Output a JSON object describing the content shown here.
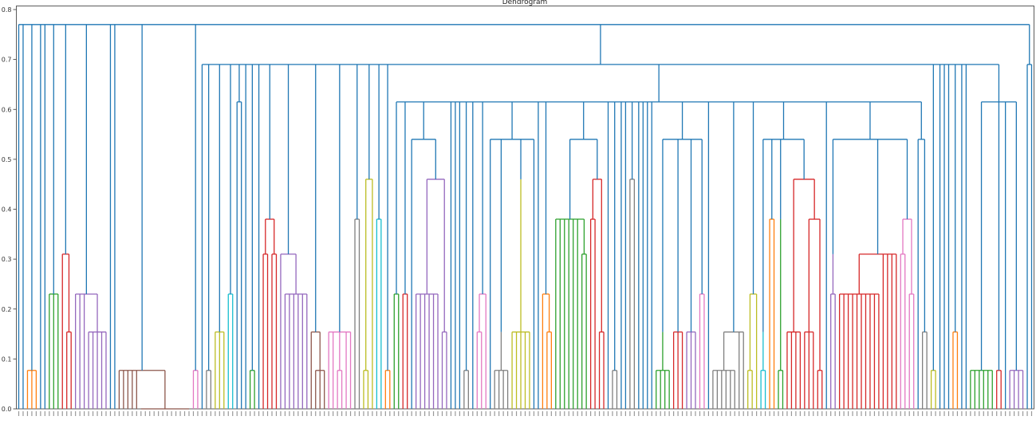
{
  "chart_data": {
    "type": "dendrogram",
    "title": "Dendrogram",
    "ylim": [
      0,
      0.8
    ],
    "yticks": [
      "0.0",
      "0.1",
      "0.2",
      "0.3",
      "0.4",
      "0.5",
      "0.6",
      "0.7",
      "0.8"
    ],
    "grid": false,
    "palette": {
      "blue": "#1f77b4",
      "orange": "#ff7f0e",
      "green": "#2ca02c",
      "red": "#d62728",
      "purple": "#9467bd",
      "brown": "#8c564b",
      "pink": "#e377c2",
      "gray": "#7f7f7f",
      "olive": "#bcbd22",
      "cyan": "#17becf"
    },
    "tree_format": "[height, color, children...]; integer child = number of leaves",
    "tree": [
      0.77,
      "blue",
      1,
      1,
      [
        0.077,
        "orange",
        3
      ],
      1,
      1,
      [
        0.23,
        "green",
        3
      ],
      [
        0.31,
        "red",
        1,
        [
          0.154,
          "red",
          2
        ]
      ],
      [
        0.23,
        "purple",
        3,
        [
          0.154,
          "purple",
          5
        ]
      ],
      1,
      1,
      [
        0.077,
        "brown",
        5,
        [
          0,
          "brown",
          12
        ]
      ],
      [
        0.077,
        "pink",
        2
      ],
      [
        0.69,
        "blue",
        1,
        [
          0.077,
          "gray",
          2
        ],
        [
          0.154,
          "olive",
          3
        ],
        [
          0.23,
          "cyan",
          2
        ],
        [
          0.615,
          "blue",
          2
        ],
        1,
        [
          0.077,
          "green",
          2
        ],
        1,
        [
          0.38,
          "red",
          [
            0.31,
            "red",
            2
          ],
          [
            0.31,
            "red",
            2
          ]
        ],
        [
          0.31,
          "purple",
          1,
          [
            0.23,
            "purple",
            6
          ]
        ],
        [
          0.154,
          "brown",
          1,
          [
            0.077,
            "brown",
            3
          ]
        ],
        [
          0.154,
          "pink",
          2,
          [
            0.077,
            "pink",
            2
          ],
          2
        ],
        [
          0.38,
          "gray",
          2
        ],
        [
          0.46,
          "olive",
          [
            0.077,
            "olive",
            2
          ],
          1
        ],
        [
          0.38,
          "cyan",
          2
        ],
        [
          0.077,
          "orange",
          2
        ],
        [
          0.615,
          "blue",
          [
            0.23,
            "green",
            2
          ],
          [
            0.23,
            "red",
            2
          ],
          [
            0.54,
            "blue",
            1,
            [
              0.46,
              "purple",
              [
                0.23,
                "purple",
                6
              ],
              [
                0.154,
                "purple",
                2
              ]
            ]
          ],
          1,
          1,
          1,
          [
            0.077,
            "gray",
            2
          ],
          1,
          [
            0.23,
            "pink",
            [
              0.154,
              "pink",
              2
            ],
            1
          ],
          [
            0.54,
            "blue",
            1,
            [
              0.154,
              "gray",
              [
                0.077,
                "gray",
                4
              ]
            ],
            [
              0.46,
              "olive",
              [
                0.154,
                "olive",
                5
              ]
            ],
            1
          ],
          1,
          [
            0.23,
            "orange",
            1,
            [
              0.154,
              "orange",
              2
            ]
          ],
          [
            0.54,
            "blue",
            [
              0.38,
              "green",
              6,
              [
                0.31,
                "green",
                2
              ]
            ],
            [
              0.46,
              "red",
              [
                0.38,
                "red",
                2
              ],
              [
                0.154,
                "red",
                2
              ]
            ]
          ],
          1,
          [
            0.077,
            "gray",
            2
          ],
          1,
          1,
          [
            0.46,
            "gray",
            2
          ],
          1,
          1,
          1,
          1,
          [
            0.54,
            "blue",
            [
              0.154,
              "green",
              [
                0.077,
                "green",
                4
              ]
            ],
            [
              0.154,
              "red",
              3
            ],
            [
              0.154,
              "purple",
              3
            ],
            [
              0.23,
              "pink",
              2
            ]
          ],
          1,
          [
            0.154,
            "gray",
            [
              0.077,
              "gray",
              6
            ],
            2
          ],
          [
            0.23,
            "olive",
            [
              0.077,
              "olive",
              2
            ],
            1
          ],
          [
            0.54,
            "blue",
            [
              0.154,
              "cyan",
              [
                0.077,
                "cyan",
                2
              ]
            ],
            [
              0.38,
              "orange",
              2
            ],
            [
              0.38,
              "green",
              [
                0.077,
                "green",
                2
              ]
            ],
            [
              0.46,
              "red",
              [
                0.23,
                "red",
                [
                  0.154,
                  "red",
                  4
                ]
              ],
              [
                0.38,
                "red",
                [
                  0.154,
                  "red",
                  3
                ],
                [
                  0.077,
                  "red",
                  2
                ]
              ]
            ]
          ],
          1,
          [
            0.54,
            "blue",
            [
              0.31,
              "purple",
              [
                0.23,
                "purple",
                2
              ]
            ],
            [
              0.31,
              "red",
              [
                0.23,
                "red",
                10
              ],
              4
            ],
            [
              0.38,
              "pink",
              [
                0.31,
                "pink",
                2
              ],
              [
                0.23,
                "pink",
                2
              ]
            ]
          ],
          [
            0.54,
            "blue",
            1,
            [
              0.154,
              "gray",
              2
            ]
          ]
        ],
        [
          0.077,
          "olive",
          2
        ],
        1,
        1,
        1,
        [
          0.154,
          "orange",
          2
        ],
        1,
        1,
        [
          0.615,
          "blue",
          [
            0.077,
            "green",
            6
          ],
          [
            0.077,
            "red",
            2
          ],
          1,
          [
            0.077,
            "purple",
            4
          ]
        ]
      ],
      [
        0.69,
        "blue",
        2
      ]
    ]
  }
}
